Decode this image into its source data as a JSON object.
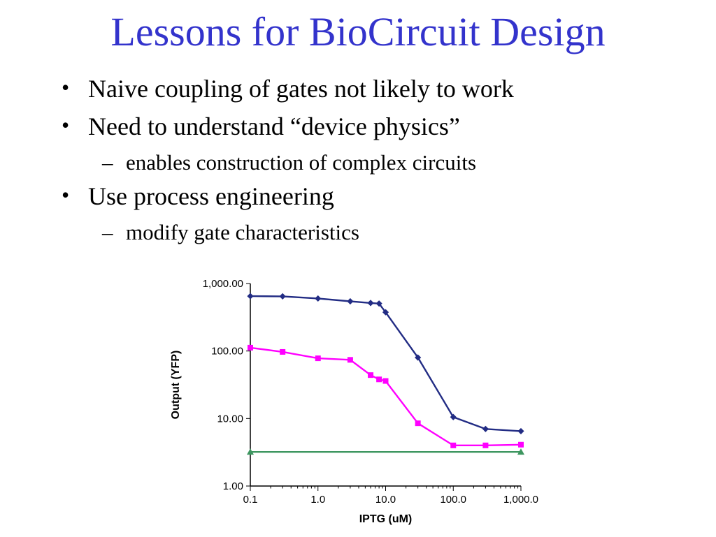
{
  "title": "Lessons for BioCircuit Design",
  "colors": {
    "title": "#3333CC",
    "text": "#000000",
    "background": "#FFFFFF",
    "series_navy": "#222C84",
    "series_magenta": "#FF00FF",
    "series_green": "#3E9660"
  },
  "bullets": [
    {
      "level": 1,
      "marker": "•",
      "text": "Naive coupling of gates not likely to work"
    },
    {
      "level": 1,
      "marker": "•",
      "text": "Need to understand “device physics”"
    },
    {
      "level": 2,
      "marker": "–",
      "text": "enables construction of complex circuits"
    },
    {
      "level": 1,
      "marker": "•",
      "text": "Use process engineering"
    },
    {
      "level": 2,
      "marker": "–",
      "text": "modify gate characteristics"
    }
  ],
  "chart_data": {
    "type": "line",
    "title": "",
    "xlabel": "IPTG (uM)",
    "ylabel": "Output (YFP)",
    "x_scale": "log",
    "y_scale": "log",
    "xlim": [
      0.1,
      1000
    ],
    "ylim": [
      1,
      1000
    ],
    "grid": false,
    "legend": "none",
    "x_ticks": [
      {
        "value": 0.1,
        "label": "0.1"
      },
      {
        "value": 1,
        "label": "1.0"
      },
      {
        "value": 10,
        "label": "10.0"
      },
      {
        "value": 100,
        "label": "100.0"
      },
      {
        "value": 1000,
        "label": "1,000.0"
      }
    ],
    "y_ticks": [
      {
        "value": 1,
        "label": "1.00"
      },
      {
        "value": 10,
        "label": "10.00"
      },
      {
        "value": 100,
        "label": "100.00"
      },
      {
        "value": 1000,
        "label": "1,000.00"
      }
    ],
    "series": [
      {
        "name": "navy-diamond",
        "color": "#222C84",
        "marker": "diamond",
        "x": [
          0.1,
          0.3,
          1,
          3,
          6,
          8,
          10,
          30,
          100,
          300,
          1000
        ],
        "y": [
          650,
          645,
          600,
          545,
          515,
          505,
          375,
          80,
          10.5,
          7,
          6.5
        ]
      },
      {
        "name": "magenta-square",
        "color": "#FF00FF",
        "marker": "square",
        "x": [
          0.1,
          0.3,
          1,
          3,
          6,
          8,
          10,
          30,
          100,
          300,
          1000
        ],
        "y": [
          112,
          97,
          78,
          74,
          44,
          38,
          36,
          8.5,
          4.0,
          4.0,
          4.1
        ]
      },
      {
        "name": "green-triangle",
        "color": "#3E9660",
        "marker": "triangle",
        "x": [
          0.1,
          1000
        ],
        "y": [
          3.2,
          3.2
        ]
      }
    ]
  }
}
